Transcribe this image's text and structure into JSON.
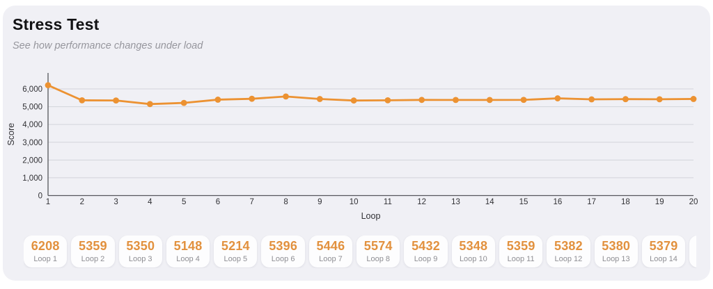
{
  "header": {
    "title": "Stress Test",
    "subtitle": "See how performance changes under load"
  },
  "chart_data": {
    "type": "line",
    "x": [
      1,
      2,
      3,
      4,
      5,
      6,
      7,
      8,
      9,
      10,
      11,
      12,
      13,
      14,
      15,
      16,
      17,
      18,
      19,
      20
    ],
    "series": [
      {
        "name": "Score",
        "values": [
          6208,
          5359,
          5350,
          5148,
          5214,
          5396,
          5446,
          5574,
          5432,
          5348,
          5359,
          5382,
          5380,
          5379,
          5385,
          5470,
          5415,
          5425,
          5420,
          5435
        ]
      }
    ],
    "xlabel": "Loop",
    "ylabel": "Score",
    "yticks": [
      0,
      1000,
      2000,
      3000,
      4000,
      5000,
      6000
    ],
    "ylim": [
      0,
      6900
    ],
    "grid": true,
    "legend_position": "none",
    "line_color": "#EC9232",
    "marker": "circle"
  },
  "results": {
    "cards": [
      {
        "value": "6208",
        "label": "Loop 1"
      },
      {
        "value": "5359",
        "label": "Loop 2"
      },
      {
        "value": "5350",
        "label": "Loop 3"
      },
      {
        "value": "5148",
        "label": "Loop 4"
      },
      {
        "value": "5214",
        "label": "Loop 5"
      },
      {
        "value": "5396",
        "label": "Loop 6"
      },
      {
        "value": "5446",
        "label": "Loop 7"
      },
      {
        "value": "5574",
        "label": "Loop 8"
      },
      {
        "value": "5432",
        "label": "Loop 9"
      },
      {
        "value": "5348",
        "label": "Loop 10"
      },
      {
        "value": "5359",
        "label": "Loop 11"
      },
      {
        "value": "5382",
        "label": "Loop 12"
      },
      {
        "value": "5380",
        "label": "Loop 13"
      },
      {
        "value": "5379",
        "label": "Loop 14"
      }
    ],
    "partial_next_card_visible": true
  },
  "colors": {
    "panel_background": "#f0f0f5",
    "page_background": "#ffffff",
    "accent_line": "#EC9232",
    "accent_value": "#E2913E",
    "grid_line": "#d3d4db",
    "axis_line": "#55565b",
    "tick_label": "#303034",
    "muted_text": "#8e8e93",
    "card_background": "#fdfdfe"
  }
}
